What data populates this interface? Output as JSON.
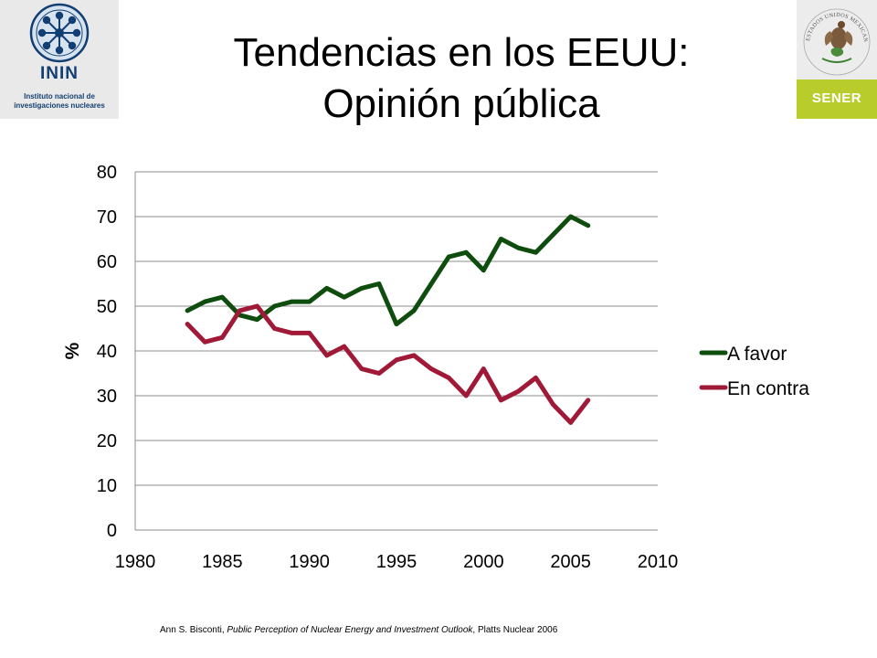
{
  "header": {
    "title_line1": "Tendencias en los EEUU:",
    "title_line2": "Opinión pública"
  },
  "logos": {
    "inin": {
      "name": "ININ",
      "subtitle": "Instituto nacional de investigaciones nucleares",
      "icon": "atom-icon",
      "color": "#123f73"
    },
    "sener": {
      "name": "SENER",
      "seal_text": "ESTADOS UNIDOS MEXICANOS",
      "icon": "mexican-coat-of-arms-icon",
      "band_color": "#b8cc2c"
    }
  },
  "footer": {
    "author": "Ann S. Bisconti, ",
    "work": "Public Perception of Nuclear Energy and Investment Outlook",
    "publisher": ", Platts Nuclear 2006"
  },
  "chart_data": {
    "type": "line",
    "title": "",
    "xlabel": "",
    "ylabel": "%",
    "xlim": [
      1980,
      2010
    ],
    "ylim": [
      0,
      80
    ],
    "x_ticks": [
      1980,
      1985,
      1990,
      1995,
      2000,
      2005,
      2010
    ],
    "y_ticks": [
      0,
      10,
      20,
      30,
      40,
      50,
      60,
      70,
      80
    ],
    "grid": "horizontal",
    "legend_position": "right",
    "series": [
      {
        "name": "A favor",
        "color": "#0e4d0e",
        "x": [
          1983,
          1984,
          1985,
          1986,
          1987,
          1988,
          1989,
          1990,
          1991,
          1992,
          1993,
          1994,
          1995,
          1996,
          1997,
          1998,
          1999,
          2000,
          2001,
          2002,
          2003,
          2004,
          2005,
          2006
        ],
        "y": [
          49,
          51,
          52,
          48,
          47,
          50,
          51,
          51,
          54,
          52,
          54,
          55,
          46,
          49,
          55,
          61,
          62,
          58,
          65,
          63,
          62,
          66,
          70,
          68
        ]
      },
      {
        "name": "En contra",
        "color": "#a01a38",
        "x": [
          1983,
          1984,
          1985,
          1986,
          1987,
          1988,
          1989,
          1990,
          1991,
          1992,
          1993,
          1994,
          1995,
          1996,
          1997,
          1998,
          1999,
          2000,
          2001,
          2002,
          2003,
          2004,
          2005,
          2006
        ],
        "y": [
          46,
          42,
          43,
          49,
          50,
          45,
          44,
          44,
          39,
          41,
          36,
          35,
          38,
          39,
          36,
          34,
          30,
          36,
          29,
          31,
          34,
          28,
          24,
          29
        ]
      }
    ]
  }
}
